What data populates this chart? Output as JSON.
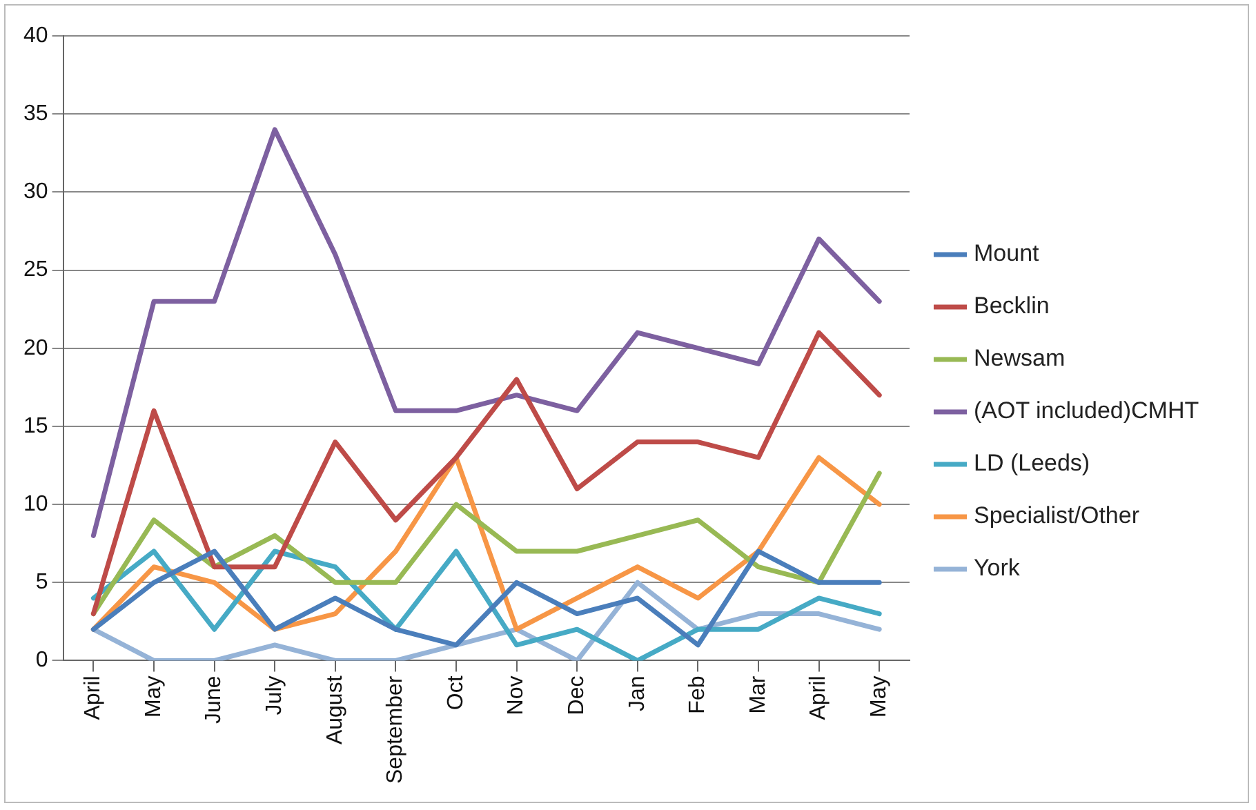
{
  "chart_data": {
    "type": "line",
    "categories": [
      "April",
      "May",
      "June",
      "July",
      "August",
      "September",
      "Oct",
      "Nov",
      "Dec",
      "Jan",
      "Feb",
      "Mar",
      "April",
      "May"
    ],
    "series": [
      {
        "name": "Mount",
        "color": "#4a7ebb",
        "values": [
          2,
          5,
          7,
          2,
          4,
          2,
          1,
          5,
          3,
          4,
          1,
          7,
          5,
          5
        ]
      },
      {
        "name": "Becklin",
        "color": "#be4b48",
        "values": [
          3,
          16,
          6,
          6,
          14,
          9,
          13,
          18,
          11,
          14,
          14,
          13,
          21,
          17
        ]
      },
      {
        "name": "Newsam",
        "color": "#98b954",
        "values": [
          3,
          9,
          6,
          8,
          5,
          5,
          10,
          7,
          7,
          8,
          9,
          6,
          5,
          12
        ]
      },
      {
        "name": "(AOT included)CMHT",
        "color": "#7d60a0",
        "values": [
          8,
          23,
          23,
          34,
          26,
          16,
          16,
          17,
          16,
          21,
          20,
          19,
          27,
          23
        ]
      },
      {
        "name": "LD (Leeds)",
        "color": "#46aac5",
        "values": [
          4,
          7,
          2,
          7,
          6,
          2,
          7,
          1,
          2,
          0,
          2,
          2,
          4,
          3
        ]
      },
      {
        "name": "Specialist/Other",
        "color": "#f79646",
        "values": [
          2,
          6,
          5,
          2,
          3,
          7,
          13,
          2,
          4,
          6,
          4,
          7,
          13,
          10
        ]
      },
      {
        "name": "York",
        "color": "#95b3d7",
        "values": [
          2,
          0,
          0,
          1,
          0,
          0,
          1,
          2,
          0,
          5,
          2,
          3,
          3,
          2
        ]
      }
    ],
    "ylim": [
      0,
      40
    ],
    "yticks": [
      0,
      5,
      10,
      15,
      20,
      25,
      30,
      35,
      40
    ],
    "grid": "y",
    "legend": "right",
    "marker": "none",
    "line_style": "solid"
  }
}
